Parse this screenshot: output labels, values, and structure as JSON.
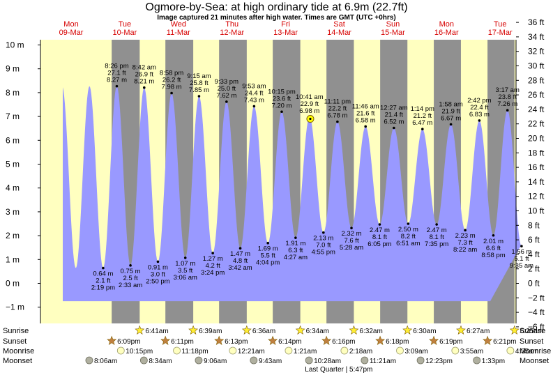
{
  "page": {
    "title": "Ogmore-by-Sea: at high  ordinary tide at 6.9m (22.7ft)",
    "subtitle": "Image captured 21 minutes after high water. Times are GMT (UTC +0hrs)"
  },
  "days": [
    {
      "name": "Mon",
      "date": "09-Mar"
    },
    {
      "name": "Tue",
      "date": "10-Mar"
    },
    {
      "name": "Wed",
      "date": "11-Mar"
    },
    {
      "name": "Thu",
      "date": "12-Mar"
    },
    {
      "name": "Fri",
      "date": "13-Mar"
    },
    {
      "name": "Sat",
      "date": "14-Mar"
    },
    {
      "name": "Sun",
      "date": "15-Mar"
    },
    {
      "name": "Mon",
      "date": "16-Mar"
    },
    {
      "name": "Tue",
      "date": "17-Mar"
    }
  ],
  "chart_data": {
    "type": "area",
    "title": "Ogmore-by-Sea: at high  ordinary tide at 6.9m (22.7ft)",
    "y_left": {
      "ticks": [
        -1,
        0,
        1,
        2,
        3,
        4,
        5,
        6,
        7,
        8,
        9,
        10
      ],
      "tick_labels": [
        "−1 m",
        "0 m",
        "1 m",
        "2 m",
        "3 m",
        "4 m",
        "5 m",
        "6 m",
        "7 m",
        "8 m",
        "9 m",
        "10 m"
      ],
      "range": [
        -1.9,
        10.9
      ]
    },
    "y_right": {
      "ticks": [
        -6,
        -4,
        -2,
        0,
        2,
        4,
        6,
        8,
        10,
        12,
        14,
        16,
        18,
        20,
        22,
        24,
        26,
        28,
        30,
        32,
        34,
        36
      ],
      "tick_labels": [
        "−6 ft",
        "−4 ft",
        "−2 ft",
        "0 ft",
        "2 ft",
        "4 ft",
        "6 ft",
        "8 ft",
        "10 ft",
        "12 ft",
        "14 ft",
        "16 ft",
        "18 ft",
        "20 ft",
        "22 ft",
        "24 ft",
        "26 ft",
        "28 ft",
        "30 ft",
        "32 ft",
        "34 ft",
        "36 ft"
      ]
    },
    "start_time": "2020-03-09T00:00Z",
    "tide_events": [
      {
        "time": "2:19 pm",
        "ts": "2020-03-09T14:19Z",
        "m": 0.64,
        "ft": "2.1 ft",
        "type": "low"
      },
      {
        "time": "8:26 pm",
        "ts": "2020-03-09T20:26Z",
        "m": 8.27,
        "ft": "27.1 ft",
        "type": "high"
      },
      {
        "time": "2:33 am",
        "ts": "2020-03-10T02:33Z",
        "m": 0.75,
        "ft": "2.5 ft",
        "type": "low"
      },
      {
        "time": "8:42 am",
        "ts": "2020-03-10T08:42Z",
        "m": 8.21,
        "ft": "26.9 ft",
        "type": "high"
      },
      {
        "time": "2:50 pm",
        "ts": "2020-03-10T14:50Z",
        "m": 0.91,
        "ft": "3.0 ft",
        "type": "low"
      },
      {
        "time": "8:58 pm",
        "ts": "2020-03-10T20:58Z",
        "m": 7.98,
        "ft": "26.2 ft",
        "type": "high"
      },
      {
        "time": "3:06 am",
        "ts": "2020-03-11T03:06Z",
        "m": 1.07,
        "ft": "3.5 ft",
        "type": "low"
      },
      {
        "time": "9:15 am",
        "ts": "2020-03-11T09:15Z",
        "m": 7.85,
        "ft": "25.8 ft",
        "type": "high"
      },
      {
        "time": "3:24 pm",
        "ts": "2020-03-11T15:24Z",
        "m": 1.27,
        "ft": "4.2 ft",
        "type": "low"
      },
      {
        "time": "9:33 pm",
        "ts": "2020-03-11T21:33Z",
        "m": 7.62,
        "ft": "25.0 ft",
        "type": "high"
      },
      {
        "time": "3:42 am",
        "ts": "2020-03-12T03:42Z",
        "m": 1.47,
        "ft": "4.8 ft",
        "type": "low"
      },
      {
        "time": "9:53 am",
        "ts": "2020-03-12T09:53Z",
        "m": 7.43,
        "ft": "24.4 ft",
        "type": "high"
      },
      {
        "time": "4:04 pm",
        "ts": "2020-03-12T16:04Z",
        "m": 1.69,
        "ft": "5.5 ft",
        "type": "low"
      },
      {
        "time": "10:15 pm",
        "ts": "2020-03-12T22:15Z",
        "m": 7.2,
        "ft": "23.6 ft",
        "type": "high"
      },
      {
        "time": "4:27 am",
        "ts": "2020-03-13T04:27Z",
        "m": 1.91,
        "ft": "6.3 ft",
        "type": "low"
      },
      {
        "time": "10:41 am",
        "ts": "2020-03-13T10:41Z",
        "m": 6.98,
        "ft": "22.9 ft",
        "type": "high"
      },
      {
        "time": "4:55 pm",
        "ts": "2020-03-13T16:55Z",
        "m": 2.13,
        "ft": "7.0 ft",
        "type": "low"
      },
      {
        "time": "11:11 pm",
        "ts": "2020-03-13T23:11Z",
        "m": 6.78,
        "ft": "22.2 ft",
        "type": "high"
      },
      {
        "time": "5:28 am",
        "ts": "2020-03-14T05:28Z",
        "m": 2.32,
        "ft": "7.6 ft",
        "type": "low"
      },
      {
        "time": "11:46 am",
        "ts": "2020-03-14T11:46Z",
        "m": 6.58,
        "ft": "21.6 ft",
        "type": "high"
      },
      {
        "time": "6:05 pm",
        "ts": "2020-03-14T18:05Z",
        "m": 2.47,
        "ft": "8.1 ft",
        "type": "low"
      },
      {
        "time": "12:27 am",
        "ts": "2020-03-15T00:27Z",
        "m": 6.52,
        "ft": "21.4 ft",
        "type": "high"
      },
      {
        "time": "6:51 am",
        "ts": "2020-03-15T06:51Z",
        "m": 2.5,
        "ft": "8.2 ft",
        "type": "low"
      },
      {
        "time": "1:14 pm",
        "ts": "2020-03-15T13:14Z",
        "m": 6.47,
        "ft": "21.2 ft",
        "type": "high"
      },
      {
        "time": "7:35 pm",
        "ts": "2020-03-15T19:35Z",
        "m": 2.47,
        "ft": "8.1 ft",
        "type": "low"
      },
      {
        "time": "1:58 am",
        "ts": "2020-03-16T01:58Z",
        "m": 6.67,
        "ft": "21.9 ft",
        "type": "high"
      },
      {
        "time": "8:22 am",
        "ts": "2020-03-16T08:22Z",
        "m": 2.23,
        "ft": "7.3 ft",
        "type": "low"
      },
      {
        "time": "2:42 pm",
        "ts": "2020-03-16T14:42Z",
        "m": 6.83,
        "ft": "22.4 ft",
        "type": "high"
      },
      {
        "time": "8:58 pm",
        "ts": "2020-03-16T20:58Z",
        "m": 2.01,
        "ft": "6.6 ft",
        "type": "low"
      },
      {
        "time": "3:17 am",
        "ts": "2020-03-17T03:17Z",
        "m": 7.26,
        "ft": "23.8 ft",
        "type": "high"
      },
      {
        "time": "9:35 am",
        "ts": "2020-03-17T09:35Z",
        "m": 1.56,
        "ft": "5.1 ft",
        "type": "low"
      }
    ],
    "current": {
      "ts": "2020-03-13T11:02Z",
      "m": 6.9
    },
    "nights": [
      [
        "2020-03-09T18:09Z",
        "2020-03-10T06:41Z"
      ],
      [
        "2020-03-10T18:11Z",
        "2020-03-11T06:39Z"
      ],
      [
        "2020-03-11T18:13Z",
        "2020-03-12T06:36Z"
      ],
      [
        "2020-03-12T18:14Z",
        "2020-03-13T06:34Z"
      ],
      [
        "2020-03-13T18:16Z",
        "2020-03-14T06:32Z"
      ],
      [
        "2020-03-14T18:18Z",
        "2020-03-15T06:30Z"
      ],
      [
        "2020-03-15T18:19Z",
        "2020-03-16T06:27Z"
      ],
      [
        "2020-03-16T18:21Z",
        "2020-03-17T06:25Z"
      ]
    ],
    "colors": {
      "day": "#ffffc0",
      "night": "#909090",
      "water": "#9999ff",
      "sun": "#ffee33",
      "sunset": "#c08040",
      "moonrise": "#ffffc0",
      "moonset": "#b0b0a0",
      "marker": "#ffff00"
    }
  },
  "astro": {
    "labels": {
      "sunrise": "Sunrise",
      "sunset": "Sunset",
      "moonrise": "Moonrise",
      "moonset": "Moonset"
    },
    "sunrise": [
      {
        "time": "6:41am",
        "ts": "2020-03-10T06:41Z"
      },
      {
        "time": "6:39am",
        "ts": "2020-03-11T06:39Z"
      },
      {
        "time": "6:36am",
        "ts": "2020-03-12T06:36Z"
      },
      {
        "time": "6:34am",
        "ts": "2020-03-13T06:34Z"
      },
      {
        "time": "6:32am",
        "ts": "2020-03-14T06:32Z"
      },
      {
        "time": "6:30am",
        "ts": "2020-03-15T06:30Z"
      },
      {
        "time": "6:27am",
        "ts": "2020-03-16T06:27Z"
      },
      {
        "time": "6:25am",
        "ts": "2020-03-17T06:25Z"
      }
    ],
    "sunset": [
      {
        "time": "6:09pm",
        "ts": "2020-03-09T18:09Z"
      },
      {
        "time": "6:11pm",
        "ts": "2020-03-10T18:11Z"
      },
      {
        "time": "6:13pm",
        "ts": "2020-03-11T18:13Z"
      },
      {
        "time": "6:14pm",
        "ts": "2020-03-12T18:14Z"
      },
      {
        "time": "6:16pm",
        "ts": "2020-03-13T18:16Z"
      },
      {
        "time": "6:18pm",
        "ts": "2020-03-14T18:18Z"
      },
      {
        "time": "6:19pm",
        "ts": "2020-03-15T18:19Z"
      },
      {
        "time": "6:21pm",
        "ts": "2020-03-16T18:21Z"
      }
    ],
    "moonrise": [
      {
        "time": "10:15pm",
        "ts": "2020-03-09T22:15Z"
      },
      {
        "time": "11:18pm",
        "ts": "2020-03-10T23:18Z"
      },
      {
        "time": "12:21am",
        "ts": "2020-03-12T00:21Z"
      },
      {
        "time": "1:21am",
        "ts": "2020-03-13T01:21Z"
      },
      {
        "time": "2:18am",
        "ts": "2020-03-14T02:18Z"
      },
      {
        "time": "3:09am",
        "ts": "2020-03-15T03:09Z"
      },
      {
        "time": "3:55am",
        "ts": "2020-03-16T03:55Z"
      },
      {
        "time": "4:35am",
        "ts": "2020-03-17T04:35Z"
      }
    ],
    "moonset": [
      {
        "time": "8:06am",
        "ts": "2020-03-09T08:06Z"
      },
      {
        "time": "8:34am",
        "ts": "2020-03-10T08:34Z"
      },
      {
        "time": "9:06am",
        "ts": "2020-03-11T09:06Z"
      },
      {
        "time": "9:43am",
        "ts": "2020-03-12T09:43Z"
      },
      {
        "time": "10:28am",
        "ts": "2020-03-13T10:28Z"
      },
      {
        "time": "11:21am",
        "ts": "2020-03-14T11:21Z"
      },
      {
        "time": "12:23pm",
        "ts": "2020-03-15T12:23Z"
      },
      {
        "time": "1:33pm",
        "ts": "2020-03-16T13:33Z"
      }
    ],
    "moon_phase": {
      "text": "Last Quarter | 5:47pm",
      "ts": "2020-03-16T17:47Z"
    }
  }
}
